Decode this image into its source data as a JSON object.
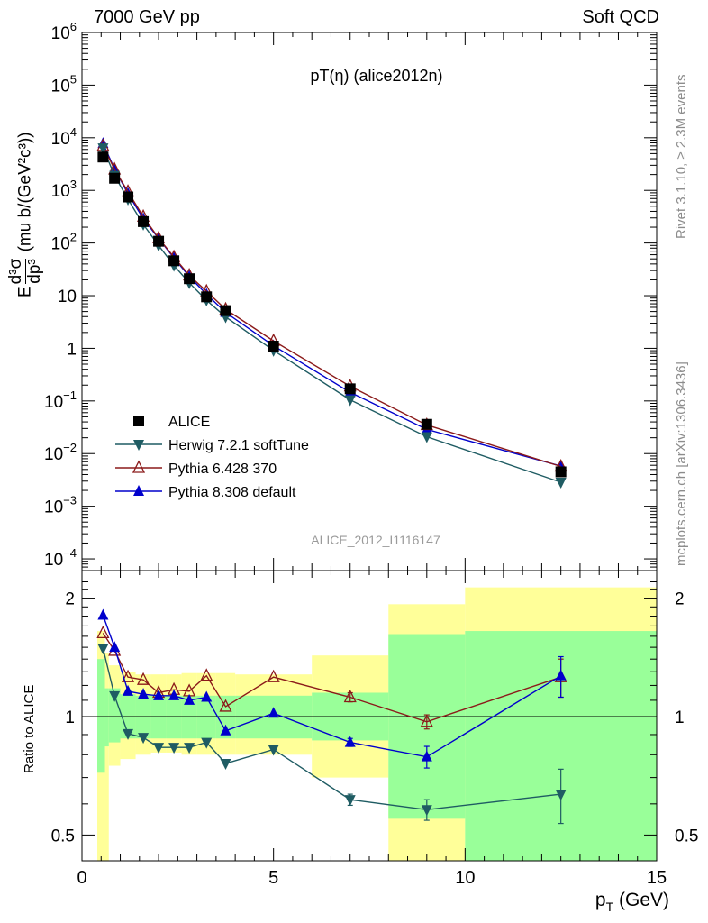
{
  "header": {
    "left": "7000 GeV pp",
    "right": "Soft QCD"
  },
  "side_text": {
    "rivet": "Rivet 3.1.10, ≥ 2.3M events",
    "mcplots": "mcplots.cern.ch [arXiv:1306.3436]"
  },
  "chart_data": [
    {
      "type": "scatter",
      "panel": "main",
      "title": "pT(η) (alice2012n)",
      "watermark": "ALICE_2012_I1116147",
      "ylabel": "E d³σ / dp³ (mu b/(GeV²c³))",
      "ylabel_parts": {
        "e": "E",
        "d3sigma": "d³σ",
        "dp3": "dp³",
        "units": "(mu b/(GeV²c³))"
      },
      "yscale": "log",
      "ylim": [
        6e-05,
        1000000
      ],
      "xlim": [
        0,
        15
      ],
      "y_ticks": [
        {
          "v": 1000000,
          "base": "10",
          "exp": "6"
        },
        {
          "v": 100000,
          "base": "10",
          "exp": "5"
        },
        {
          "v": 10000,
          "base": "10",
          "exp": "4"
        },
        {
          "v": 1000,
          "base": "10",
          "exp": "3"
        },
        {
          "v": 100,
          "base": "10",
          "exp": "2"
        },
        {
          "v": 10,
          "base": "10",
          "exp": ""
        },
        {
          "v": 1,
          "base": "1",
          "exp": ""
        },
        {
          "v": 0.1,
          "base": "10",
          "exp": "−1"
        },
        {
          "v": 0.01,
          "base": "10",
          "exp": "−2"
        },
        {
          "v": 0.001,
          "base": "10",
          "exp": "−3"
        },
        {
          "v": 0.0001,
          "base": "10",
          "exp": "−4"
        }
      ],
      "x": [
        0.55,
        0.85,
        1.2,
        1.6,
        2.0,
        2.4,
        2.8,
        3.25,
        3.75,
        5.0,
        7.0,
        9.0,
        12.5
      ],
      "series": [
        {
          "name": "ALICE",
          "color": "#000000",
          "marker": "square",
          "values": [
            4300,
            1700,
            750,
            255,
            108,
            46,
            21,
            9.5,
            5.2,
            1.1,
            0.17,
            0.036,
            0.0045
          ]
        },
        {
          "name": "Herwig 7.2.1 softTune",
          "color": "#1f5c63",
          "marker": "triangle-down",
          "values": [
            6400,
            1920,
            680,
            226,
            90,
            37.5,
            17.5,
            8.2,
            3.95,
            0.91,
            0.105,
            0.0209,
            0.00286
          ]
        },
        {
          "name": "Pythia 6.428 370",
          "color": "#8b1a1a",
          "marker": "triangle-up-open",
          "values": [
            7000,
            2500,
            946,
            317,
            124,
            54,
            24.3,
            12.1,
            5.5,
            1.38,
            0.19,
            0.035,
            0.0057
          ]
        },
        {
          "name": "Pythia 8.308 default",
          "color": "#0000cc",
          "marker": "triangle-up",
          "values": [
            7800,
            2550,
            870,
            290,
            122,
            52,
            23.1,
            10.6,
            4.8,
            1.12,
            0.146,
            0.0288,
            0.0058
          ]
        }
      ]
    },
    {
      "type": "line",
      "panel": "ratio",
      "ylabel": "Ratio to ALICE",
      "yscale": "log",
      "ylim": [
        0.43,
        2.35
      ],
      "xlim": [
        0,
        15
      ],
      "xlabel": "p_T (GeV)",
      "xlabel_parts": {
        "p": "p",
        "sub": "T",
        "unit": "(GeV)"
      },
      "x_ticks": [
        "0",
        "5",
        "10",
        "15"
      ],
      "y_ticks": [
        "0.5",
        "1",
        "2"
      ],
      "x": [
        0.55,
        0.85,
        1.2,
        1.6,
        2.0,
        2.4,
        2.8,
        3.25,
        3.75,
        5.0,
        7.0,
        9.0,
        12.5
      ],
      "bands": [
        {
          "lo": 0.4,
          "hi": 0.6,
          "yellow": [
            0.42,
            1.65
          ],
          "green": [
            0.72,
            1.4
          ]
        },
        {
          "lo": 0.6,
          "hi": 0.7,
          "yellow": [
            0.42,
            1.45
          ],
          "green": [
            0.84,
            1.18
          ]
        },
        {
          "lo": 0.7,
          "hi": 1.0,
          "yellow": [
            0.75,
            1.35
          ],
          "green": [
            0.86,
            1.18
          ]
        },
        {
          "lo": 1.0,
          "hi": 1.4,
          "yellow": [
            0.78,
            1.3
          ],
          "green": [
            0.88,
            1.14
          ]
        },
        {
          "lo": 1.4,
          "hi": 1.8,
          "yellow": [
            0.8,
            1.28
          ],
          "green": [
            0.88,
            1.13
          ]
        },
        {
          "lo": 1.8,
          "hi": 2.2,
          "yellow": [
            0.81,
            1.28
          ],
          "green": [
            0.88,
            1.13
          ]
        },
        {
          "lo": 2.2,
          "hi": 2.6,
          "yellow": [
            0.81,
            1.28
          ],
          "green": [
            0.88,
            1.13
          ]
        },
        {
          "lo": 2.6,
          "hi": 3.0,
          "yellow": [
            0.8,
            1.29
          ],
          "green": [
            0.88,
            1.13
          ]
        },
        {
          "lo": 3.0,
          "hi": 3.5,
          "yellow": [
            0.8,
            1.29
          ],
          "green": [
            0.88,
            1.13
          ]
        },
        {
          "lo": 3.5,
          "hi": 4.0,
          "yellow": [
            0.8,
            1.29
          ],
          "green": [
            0.88,
            1.13
          ]
        },
        {
          "lo": 4.0,
          "hi": 6.0,
          "yellow": [
            0.8,
            1.28
          ],
          "green": [
            0.88,
            1.13
          ]
        },
        {
          "lo": 6.0,
          "hi": 8.0,
          "yellow": [
            0.7,
            1.43
          ],
          "green": [
            0.87,
            1.15
          ]
        },
        {
          "lo": 8.0,
          "hi": 10.0,
          "yellow": [
            0.43,
            1.93
          ],
          "green": [
            0.55,
            1.62
          ]
        },
        {
          "lo": 10.0,
          "hi": 15.0,
          "yellow": [
            0.43,
            2.13
          ],
          "green": [
            0.37,
            1.65
          ]
        }
      ],
      "series": [
        {
          "name": "Herwig 7.2.1 softTune",
          "color": "#1f5c63",
          "marker": "triangle-down",
          "values": [
            1.49,
            1.13,
            0.905,
            0.885,
            0.835,
            0.835,
            0.835,
            0.86,
            0.76,
            0.825,
            0.615,
            0.58,
            0.635
          ],
          "err": [
            0,
            0,
            0,
            0,
            0,
            0,
            0,
            0,
            0,
            0,
            0.02,
            0.035,
            0.1
          ]
        },
        {
          "name": "Pythia 6.428 370",
          "color": "#8b1a1a",
          "marker": "triangle-up-open",
          "values": [
            1.63,
            1.47,
            1.26,
            1.24,
            1.15,
            1.17,
            1.16,
            1.27,
            1.06,
            1.26,
            1.12,
            0.97,
            1.26
          ],
          "err": [
            0,
            0,
            0,
            0,
            0,
            0,
            0,
            0,
            0,
            0,
            0.03,
            0.04,
            0.14
          ]
        },
        {
          "name": "Pythia 8.308 default",
          "color": "#0000cc",
          "marker": "triangle-up",
          "values": [
            1.81,
            1.5,
            1.16,
            1.14,
            1.13,
            1.13,
            1.1,
            1.12,
            0.92,
            1.02,
            0.86,
            0.79,
            1.27
          ],
          "err": [
            0,
            0,
            0,
            0,
            0,
            0,
            0,
            0,
            0,
            0,
            0.02,
            0.05,
            0.15
          ]
        }
      ]
    }
  ]
}
